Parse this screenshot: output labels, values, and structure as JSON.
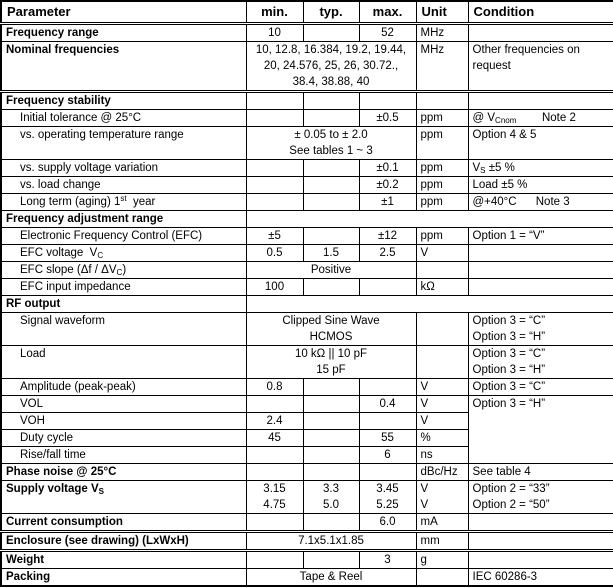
{
  "table": {
    "header": {
      "parameter": "Parameter",
      "min": "min.",
      "typ": "typ.",
      "max": "max.",
      "unit": "Unit",
      "condition": "Condition"
    },
    "rows": [
      {
        "name": "frequency-range",
        "param": "Frequency range",
        "bold": true,
        "min": "10",
        "typ": "",
        "max": "52",
        "unit": "MHz",
        "cond": "",
        "double_top": true
      },
      {
        "name": "nominal-frequencies",
        "param": "Nominal frequencies",
        "bold": true,
        "span3": "10, 12.8, 16.384, 19.2, 19.44,\n20, 24.576, 25, 26, 30.72.,\n38.4, 38.88, 40",
        "unit": "MHz",
        "cond": "Other frequencies on\nrequest"
      },
      {
        "name": "frequency-stability",
        "param": "Frequency stability",
        "bold": true,
        "min": "",
        "typ": "",
        "max": "",
        "unit": "",
        "cond": "",
        "double_top": true
      },
      {
        "name": "initial-tolerance",
        "param": "Initial tolerance @ 25°C",
        "indent": true,
        "min": "",
        "typ": "",
        "max": "±0.5",
        "unit": "ppm",
        "cond": "@ V~Cnom~        Note 2"
      },
      {
        "name": "vs-operating-temperature-range",
        "param": "vs. operating temperature range",
        "indent": true,
        "span3": "± 0.05 to ± 2.0\nSee tables 1 ~ 3",
        "unit": "ppm",
        "cond": "Option 4 & 5"
      },
      {
        "name": "vs-supply-voltage-variation",
        "param": "vs. supply voltage variation",
        "indent": true,
        "min": "",
        "typ": "",
        "max": "±0.1",
        "unit": "ppm",
        "cond": "V~S~ ±5 %"
      },
      {
        "name": "vs-load-change",
        "param": "vs. load change",
        "indent": true,
        "min": "",
        "typ": "",
        "max": "±0.2",
        "unit": "ppm",
        "cond": "Load ±5 %"
      },
      {
        "name": "long-term-aging",
        "param": "Long term (aging) 1^st^  year",
        "indent": true,
        "min": "",
        "typ": "",
        "max": "±1",
        "unit": "ppm",
        "cond": "@+40°C      Note 3"
      },
      {
        "name": "frequency-adjustment-range",
        "param": "Frequency adjustment range",
        "bold": true,
        "merge_all": true
      },
      {
        "name": "efc",
        "param": "Electronic Frequency Control (EFC)",
        "indent": true,
        "min": "±5",
        "typ": "",
        "max": "±12",
        "unit": "ppm",
        "cond": "Option 1 = “V”"
      },
      {
        "name": "efc-voltage",
        "param": "EFC voltage  V~C~",
        "indent": true,
        "min": "0.5",
        "typ": "1.5",
        "max": "2.5",
        "unit": "V",
        "cond": ""
      },
      {
        "name": "efc-slope",
        "param": "EFC slope (Δf / ΔV~C~)",
        "indent": true,
        "span3": "Positive",
        "unit": "",
        "cond": ""
      },
      {
        "name": "efc-input-impedance",
        "param": "EFC input impedance",
        "indent": true,
        "min": "100",
        "typ": "",
        "max": "",
        "unit": "kΩ",
        "cond": ""
      },
      {
        "name": "rf-output",
        "param": "RF output",
        "bold": true,
        "merge_all": true
      },
      {
        "name": "signal-waveform",
        "param": "Signal waveform",
        "indent": true,
        "span3": "Clipped Sine Wave\nHCMOS",
        "unit": "",
        "cond": "Option 3 = “C”\nOption 3 = “H”"
      },
      {
        "name": "load",
        "param": "Load",
        "indent": true,
        "span3": "10 kΩ || 10 pF\n15 pF",
        "unit": "",
        "cond": "Option 3 = “C”\nOption 3 = “H”"
      },
      {
        "name": "amplitude",
        "param": "Amplitude (peak-peak)",
        "indent": true,
        "min": "0.8",
        "typ": "",
        "max": "",
        "unit": "V",
        "cond": "Option 3 = “C”"
      },
      {
        "name": "vol",
        "param": "VOL",
        "indent": true,
        "min": "",
        "typ": "",
        "max": "0.4",
        "unit": "V",
        "cond": "Option 3 = “H”",
        "cond_rowspan": 4
      },
      {
        "name": "voh",
        "param": "VOH",
        "indent": true,
        "min": "2.4",
        "typ": "",
        "max": "",
        "unit": "V",
        "skip_cond": true
      },
      {
        "name": "duty-cycle",
        "param": "Duty cycle",
        "indent": true,
        "min": "45",
        "typ": "",
        "max": "55",
        "unit": "%",
        "skip_cond": true
      },
      {
        "name": "rise-fall-time",
        "param": "Rise/fall time",
        "indent": true,
        "min": "",
        "typ": "",
        "max": "6",
        "unit": "ns",
        "skip_cond": true
      },
      {
        "name": "phase-noise",
        "param": "Phase noise @ 25°C",
        "bold": true,
        "min": "",
        "typ": "",
        "max": "",
        "unit": "dBc/Hz",
        "cond": "See table 4"
      },
      {
        "name": "supply-voltage",
        "param": "Supply voltage V~S~",
        "bold": true,
        "min": "3.15\n4.75",
        "typ": "3.3\n5.0",
        "max": "3.45\n5.25",
        "unit": "V\nV",
        "cond": "Option 2 = “33”\nOption 2 = “50”"
      },
      {
        "name": "current-consumption",
        "param": "Current consumption",
        "bold": true,
        "min": "",
        "typ": "",
        "max": "6.0",
        "unit": "mA",
        "cond": ""
      },
      {
        "name": "enclosure",
        "param": "Enclosure (see drawing) (LxWxH)",
        "bold": true,
        "span3": "7.1x5.1x1.85",
        "unit": "mm",
        "cond": "",
        "double_top": true
      },
      {
        "name": "weight",
        "param": "Weight",
        "bold": true,
        "min": "",
        "typ": "",
        "max": "3",
        "unit": "g",
        "cond": "",
        "double_top": true
      },
      {
        "name": "packing",
        "param": "Packing",
        "bold": true,
        "span3": "Tape & Reel",
        "unit": "",
        "cond": "IEC 60286-3"
      }
    ]
  },
  "colors": {
    "border": "#000000",
    "text": "#000000",
    "background": "#ffffff"
  }
}
